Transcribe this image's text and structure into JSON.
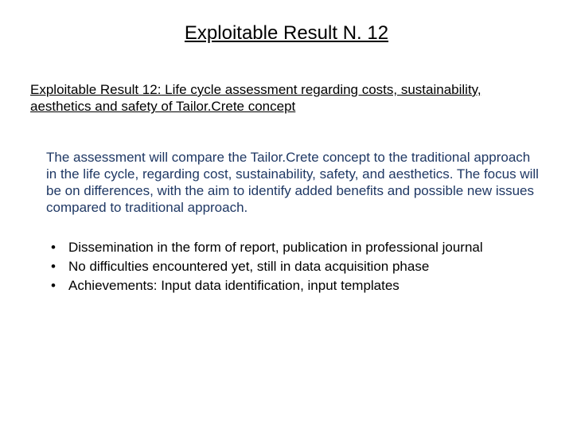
{
  "colors": {
    "background": "#ffffff",
    "text_main": "#000000",
    "text_highlight": "#1f3864"
  },
  "typography": {
    "family": "Arial",
    "title_size_pt": 18,
    "body_size_pt": 13
  },
  "title": "Exploitable Result N. 12",
  "subtitle": {
    "label": "Exploitable Result 12:",
    "body": " Life cycle assessment regarding costs, sustainability, aesthetics and safety of Tailor.Crete concept"
  },
  "paragraph": "The assessment will compare the Tailor.Crete concept to the traditional approach in the life cycle, regarding cost, sustainability, safety, and aesthetics. The focus will be on differences, with the aim to identify added benefits and possible new issues compared to traditional approach.",
  "bullets": [
    "Dissemination in the form of report, publication in professional journal",
    "No difficulties encountered yet, still in data acquisition phase",
    "Achievements: Input data identification, input templates"
  ]
}
